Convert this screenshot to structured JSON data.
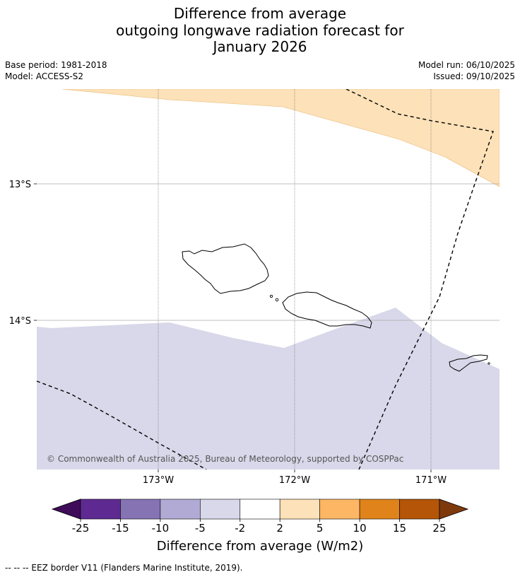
{
  "title": {
    "line1": "Difference from average",
    "line2": "outgoing longwave radiation forecast for",
    "line3": "January 2026"
  },
  "info": {
    "base_period": "Base period: 1981-2018",
    "model": "Model: ACCESS-S2",
    "model_run": "Model run: 06/10/2025",
    "issued": "Issued: 09/10/2025"
  },
  "map": {
    "lat_labels": [
      "13°S",
      "14°S"
    ],
    "lon_labels": [
      "173°W",
      "172°W",
      "171°W"
    ],
    "copyright": "© Commonwealth of Australia 2025, Bureau of Meteorology, supported by COSPPac"
  },
  "colorbar": {
    "label": "Difference from average (W/m2)",
    "ticks": [
      "-25",
      "-15",
      "-10",
      "-5",
      "-2",
      "2",
      "5",
      "10",
      "15",
      "25"
    ],
    "colors": [
      "#3f0c5a",
      "#5e2a92",
      "#8573b3",
      "#b1aad4",
      "#d8d8ea",
      "#ffffff",
      "#fde1b8",
      "#fdb663",
      "#e0831b",
      "#b45508",
      "#7f3a0c"
    ]
  },
  "footer": {
    "legend": "--  --  -- EEZ border V11 (Flanders Marine Institute, 2019)."
  }
}
